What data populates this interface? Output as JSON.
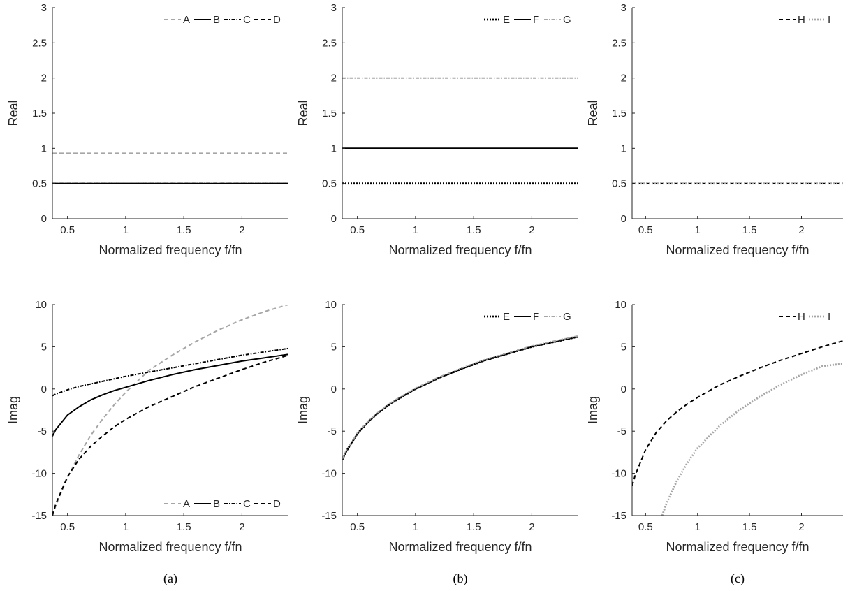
{
  "captions": [
    "(a)",
    "(b)",
    "(c)"
  ],
  "chart_data": [
    {
      "type": "line",
      "panel": "a-top",
      "xlabel": "Normalized frequency f/fn",
      "ylabel": "Real",
      "xlim": [
        0.37,
        2.4
      ],
      "ylim": [
        0,
        3
      ],
      "xticks": [
        0.5,
        1,
        1.5,
        2
      ],
      "xtick_labels": [
        "0.5",
        "1",
        "1.5",
        "2"
      ],
      "yticks": [
        0,
        0.5,
        1,
        1.5,
        2,
        2.5,
        3
      ],
      "ytick_labels": [
        "0",
        "0.5",
        "1",
        "1.5",
        "2",
        "2.5",
        "3"
      ],
      "legend_position": "top-right",
      "grid": false,
      "series": [
        {
          "name": "A",
          "color": "#a6a6a6",
          "dash": "6,4",
          "width": 2,
          "x": [
            0.37,
            2.4
          ],
          "y": [
            0.93,
            0.93
          ]
        },
        {
          "name": "B",
          "color": "#000000",
          "dash": "",
          "width": 2,
          "x": [
            0.37,
            2.4
          ],
          "y": [
            0.5,
            0.5
          ]
        },
        {
          "name": "C",
          "color": "#000000",
          "dash": "5,2,1.5,2",
          "width": 2,
          "x": [
            0.37,
            2.4
          ],
          "y": [
            0.5,
            0.5
          ]
        },
        {
          "name": "D",
          "color": "#000000",
          "dash": "6,4",
          "width": 2,
          "x": [
            0.37,
            2.4
          ],
          "y": [
            0.5,
            0.5
          ]
        }
      ]
    },
    {
      "type": "line",
      "panel": "b-top",
      "xlabel": "Normalized frequency f/fn",
      "ylabel": "Real",
      "xlim": [
        0.37,
        2.4
      ],
      "ylim": [
        0,
        3
      ],
      "xticks": [
        0.5,
        1,
        1.5,
        2
      ],
      "xtick_labels": [
        "0.5",
        "1",
        "1.5",
        "2"
      ],
      "yticks": [
        0,
        0.5,
        1,
        1.5,
        2,
        2.5,
        3
      ],
      "ytick_labels": [
        "0",
        "0.5",
        "1",
        "1.5",
        "2",
        "2.5",
        "3"
      ],
      "legend_position": "top-right",
      "grid": false,
      "series": [
        {
          "name": "E",
          "color": "#000000",
          "dash": "2,2",
          "width": 2.8,
          "x": [
            0.37,
            2.4
          ],
          "y": [
            0.5,
            0.5
          ]
        },
        {
          "name": "F",
          "color": "#000000",
          "dash": "",
          "width": 2,
          "x": [
            0.37,
            2.4
          ],
          "y": [
            1.0,
            1.0
          ]
        },
        {
          "name": "G",
          "color": "#a6a6a6",
          "dash": "5,2,1.5,2",
          "width": 2,
          "x": [
            0.37,
            2.4
          ],
          "y": [
            2.0,
            2.0
          ]
        }
      ]
    },
    {
      "type": "line",
      "panel": "c-top",
      "xlabel": "Normalized frequency f/fn",
      "ylabel": "Real",
      "xlim": [
        0.37,
        2.4
      ],
      "ylim": [
        0,
        3
      ],
      "xticks": [
        0.5,
        1,
        1.5,
        2
      ],
      "xtick_labels": [
        "0.5",
        "1",
        "1.5",
        "2"
      ],
      "yticks": [
        0,
        0.5,
        1,
        1.5,
        2,
        2.5,
        3
      ],
      "ytick_labels": [
        "0",
        "0.5",
        "1",
        "1.5",
        "2",
        "2.5",
        "3"
      ],
      "legend_position": "top-right",
      "grid": false,
      "series": [
        {
          "name": "H",
          "color": "#000000",
          "dash": "6,4",
          "width": 2,
          "x": [
            0.37,
            2.4
          ],
          "y": [
            0.5,
            0.5
          ]
        },
        {
          "name": "I",
          "color": "#a6a6a6",
          "dash": "2,2",
          "width": 2.8,
          "x": [
            0.37,
            2.4
          ],
          "y": [
            0.5,
            0.5
          ]
        }
      ]
    },
    {
      "type": "line",
      "panel": "a-bottom",
      "xlabel": "Normalized frequency f/fn",
      "ylabel": "Imag",
      "xlim": [
        0.37,
        2.4
      ],
      "ylim": [
        -15,
        10
      ],
      "xticks": [
        0.5,
        1,
        1.5,
        2
      ],
      "xtick_labels": [
        "0.5",
        "1",
        "1.5",
        "2"
      ],
      "yticks": [
        -15,
        -10,
        -5,
        0,
        5,
        10
      ],
      "ytick_labels": [
        "-15",
        "-10",
        "-5",
        "0",
        "5",
        "10"
      ],
      "legend_position": "bottom-right",
      "grid": false,
      "series": [
        {
          "name": "A",
          "color": "#a6a6a6",
          "dash": "6,4",
          "width": 2,
          "x": [
            0.37,
            0.4,
            0.5,
            0.6,
            0.7,
            0.8,
            0.9,
            1.0,
            1.2,
            1.4,
            1.6,
            1.8,
            2.0,
            2.2,
            2.4
          ],
          "y": [
            -15.0,
            -13.8,
            -10.5,
            -7.8,
            -5.5,
            -3.6,
            -1.9,
            -0.4,
            2.2,
            4.0,
            5.6,
            7.0,
            8.2,
            9.2,
            10.0
          ]
        },
        {
          "name": "B",
          "color": "#000000",
          "dash": "",
          "width": 2,
          "x": [
            0.37,
            0.4,
            0.5,
            0.6,
            0.7,
            0.8,
            0.9,
            1.0,
            1.2,
            1.4,
            1.6,
            1.8,
            2.0,
            2.2,
            2.4
          ],
          "y": [
            -5.6,
            -4.8,
            -3.1,
            -2.1,
            -1.3,
            -0.7,
            -0.2,
            0.2,
            1.0,
            1.7,
            2.3,
            2.8,
            3.3,
            3.7,
            4.1
          ]
        },
        {
          "name": "C",
          "color": "#000000",
          "dash": "5,2,1.5,2",
          "width": 2,
          "x": [
            0.37,
            0.4,
            0.5,
            0.6,
            0.7,
            0.8,
            0.9,
            1.0,
            1.2,
            1.4,
            1.6,
            1.8,
            2.0,
            2.2,
            2.4
          ],
          "y": [
            -0.8,
            -0.6,
            -0.1,
            0.3,
            0.6,
            0.9,
            1.2,
            1.5,
            2.0,
            2.5,
            3.0,
            3.5,
            4.0,
            4.4,
            4.8
          ]
        },
        {
          "name": "D",
          "color": "#000000",
          "dash": "6,4",
          "width": 2,
          "x": [
            0.37,
            0.4,
            0.5,
            0.6,
            0.7,
            0.8,
            0.9,
            1.0,
            1.2,
            1.4,
            1.6,
            1.8,
            2.0,
            2.2,
            2.4
          ],
          "y": [
            -15.0,
            -13.6,
            -10.4,
            -8.3,
            -6.8,
            -5.6,
            -4.5,
            -3.6,
            -2.1,
            -0.9,
            0.3,
            1.3,
            2.3,
            3.2,
            4.0
          ]
        }
      ]
    },
    {
      "type": "line",
      "panel": "b-bottom",
      "xlabel": "Normalized frequency f/fn",
      "ylabel": "Imag",
      "xlim": [
        0.37,
        2.4
      ],
      "ylim": [
        -15,
        10
      ],
      "xticks": [
        0.5,
        1,
        1.5,
        2
      ],
      "xtick_labels": [
        "0.5",
        "1",
        "1.5",
        "2"
      ],
      "yticks": [
        -15,
        -10,
        -5,
        0,
        5,
        10
      ],
      "ytick_labels": [
        "-15",
        "-10",
        "-5",
        "0",
        "5",
        "10"
      ],
      "legend_position": "top-right",
      "grid": false,
      "series": [
        {
          "name": "E",
          "color": "#000000",
          "dash": "2,2",
          "width": 2.8,
          "x": [
            0.37,
            0.4,
            0.5,
            0.6,
            0.7,
            0.8,
            0.9,
            1.0,
            1.2,
            1.4,
            1.6,
            1.8,
            2.0,
            2.2,
            2.4
          ],
          "y": [
            -8.4,
            -7.5,
            -5.3,
            -3.8,
            -2.6,
            -1.6,
            -0.8,
            0.0,
            1.3,
            2.4,
            3.4,
            4.2,
            5.0,
            5.6,
            6.2
          ]
        },
        {
          "name": "F",
          "color": "#000000",
          "dash": "",
          "width": 2,
          "x": [
            0.37,
            0.4,
            0.5,
            0.6,
            0.7,
            0.8,
            0.9,
            1.0,
            1.2,
            1.4,
            1.6,
            1.8,
            2.0,
            2.2,
            2.4
          ],
          "y": [
            -8.4,
            -7.5,
            -5.3,
            -3.8,
            -2.6,
            -1.6,
            -0.8,
            0.0,
            1.3,
            2.4,
            3.4,
            4.2,
            5.0,
            5.6,
            6.2
          ]
        },
        {
          "name": "G",
          "color": "#a6a6a6",
          "dash": "5,2,1.5,2",
          "width": 2,
          "x": [
            0.37,
            0.4,
            0.5,
            0.6,
            0.7,
            0.8,
            0.9,
            1.0,
            1.2,
            1.4,
            1.6,
            1.8,
            2.0,
            2.2,
            2.4
          ],
          "y": [
            -8.3,
            -7.4,
            -5.2,
            -3.7,
            -2.5,
            -1.5,
            -0.7,
            0.1,
            1.4,
            2.5,
            3.5,
            4.3,
            5.1,
            5.7,
            6.3
          ]
        }
      ]
    },
    {
      "type": "line",
      "panel": "c-bottom",
      "xlabel": "Normalized frequency f/fn",
      "ylabel": "Imag",
      "xlim": [
        0.37,
        2.4
      ],
      "ylim": [
        -15,
        10
      ],
      "xticks": [
        0.5,
        1,
        1.5,
        2
      ],
      "xtick_labels": [
        "0.5",
        "1",
        "1.5",
        "2"
      ],
      "yticks": [
        -15,
        -10,
        -5,
        0,
        5,
        10
      ],
      "ytick_labels": [
        "-15",
        "-10",
        "-5",
        "0",
        "5",
        "10"
      ],
      "legend_position": "top-right",
      "grid": false,
      "series": [
        {
          "name": "H",
          "color": "#000000",
          "dash": "6,4",
          "width": 2,
          "x": [
            0.37,
            0.4,
            0.5,
            0.6,
            0.7,
            0.8,
            0.9,
            1.0,
            1.2,
            1.4,
            1.6,
            1.8,
            2.0,
            2.2,
            2.4
          ],
          "y": [
            -11.5,
            -10.2,
            -7.2,
            -5.2,
            -3.8,
            -2.7,
            -1.8,
            -1.0,
            0.4,
            1.5,
            2.5,
            3.4,
            4.2,
            5.0,
            5.7
          ]
        },
        {
          "name": "I",
          "color": "#a6a6a6",
          "dash": "2,2",
          "width": 2.8,
          "x": [
            0.66,
            0.7,
            0.8,
            0.9,
            1.0,
            1.2,
            1.4,
            1.6,
            1.8,
            2.0,
            2.2,
            2.4
          ],
          "y": [
            -15.0,
            -13.6,
            -10.9,
            -8.8,
            -7.0,
            -4.5,
            -2.5,
            -0.9,
            0.5,
            1.7,
            2.7,
            3.0
          ]
        }
      ]
    }
  ]
}
